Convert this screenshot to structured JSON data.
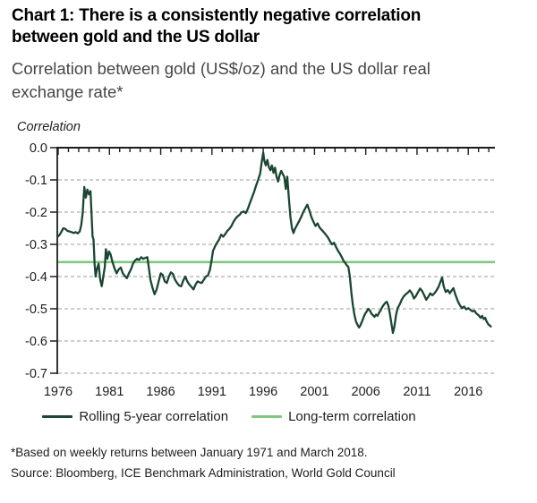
{
  "header": {
    "title_line1": "Chart 1: There is a consistently negative correlation",
    "title_line2": "between gold and the US dollar",
    "subtitle_line1": "Correlation between gold (US$/oz) and the US dollar real",
    "subtitle_line2": "exchange rate*"
  },
  "footer": {
    "footnote": "*Based on weekly returns between January 1971 and March 2018.",
    "source": "Source: Bloomberg, ICE Benchmark Administration, World Gold Council"
  },
  "colors": {
    "title": "#000000",
    "subtitle": "#464646",
    "axis": "#1d1d1b",
    "grid": "#9b9b9b",
    "text": "#1d1d1b",
    "series_dark": "#1a4632",
    "series_light": "#7fc882"
  },
  "chart_data": {
    "type": "line",
    "title": "Chart 1: There is a consistently negative correlation between gold and the US dollar",
    "subtitle": "Correlation between gold (US$/oz) and the US dollar real exchange rate*",
    "ylabel": "Correlation",
    "xlabel": "",
    "grid": "horizontal-dashed",
    "legend_position": "bottom",
    "x_range": [
      1976,
      2018.6
    ],
    "y_range": [
      0,
      -0.7
    ],
    "x_ticks": [
      1976,
      1981,
      1986,
      1991,
      1996,
      2001,
      2006,
      2011,
      2016
    ],
    "y_ticks": [
      0,
      -0.1,
      -0.2,
      -0.3,
      -0.4,
      -0.5,
      -0.6,
      -0.7
    ],
    "y_tick_labels": [
      "0.0",
      "-0.1",
      "-0.2",
      "-0.3",
      "-0.4",
      "-0.5",
      "-0.6",
      "-0.7"
    ],
    "series": [
      {
        "name": "Rolling 5-year correlation",
        "color": "#1a4632",
        "points": [
          [
            1976.0,
            -0.275
          ],
          [
            1976.15,
            -0.27
          ],
          [
            1976.3,
            -0.262
          ],
          [
            1976.5,
            -0.25
          ],
          [
            1976.7,
            -0.252
          ],
          [
            1976.9,
            -0.258
          ],
          [
            1977.1,
            -0.26
          ],
          [
            1977.3,
            -0.262
          ],
          [
            1977.5,
            -0.265
          ],
          [
            1977.7,
            -0.262
          ],
          [
            1977.9,
            -0.266
          ],
          [
            1978.1,
            -0.26
          ],
          [
            1978.25,
            -0.24
          ],
          [
            1978.4,
            -0.2
          ],
          [
            1978.45,
            -0.17
          ],
          [
            1978.55,
            -0.122
          ],
          [
            1978.7,
            -0.155
          ],
          [
            1978.85,
            -0.13
          ],
          [
            1979.0,
            -0.145
          ],
          [
            1979.15,
            -0.135
          ],
          [
            1979.25,
            -0.2
          ],
          [
            1979.35,
            -0.275
          ],
          [
            1979.45,
            -0.285
          ],
          [
            1979.55,
            -0.36
          ],
          [
            1979.65,
            -0.4
          ],
          [
            1979.8,
            -0.375
          ],
          [
            1979.95,
            -0.36
          ],
          [
            1980.1,
            -0.41
          ],
          [
            1980.25,
            -0.43
          ],
          [
            1980.4,
            -0.4
          ],
          [
            1980.55,
            -0.37
          ],
          [
            1980.65,
            -0.315
          ],
          [
            1980.8,
            -0.345
          ],
          [
            1980.95,
            -0.322
          ],
          [
            1981.1,
            -0.33
          ],
          [
            1981.3,
            -0.355
          ],
          [
            1981.5,
            -0.375
          ],
          [
            1981.7,
            -0.39
          ],
          [
            1981.9,
            -0.378
          ],
          [
            1982.1,
            -0.372
          ],
          [
            1982.3,
            -0.39
          ],
          [
            1982.5,
            -0.398
          ],
          [
            1982.7,
            -0.405
          ],
          [
            1982.9,
            -0.39
          ],
          [
            1983.1,
            -0.378
          ],
          [
            1983.3,
            -0.36
          ],
          [
            1983.5,
            -0.35
          ],
          [
            1983.7,
            -0.345
          ],
          [
            1983.9,
            -0.348
          ],
          [
            1984.1,
            -0.34
          ],
          [
            1984.3,
            -0.345
          ],
          [
            1984.5,
            -0.342
          ],
          [
            1984.7,
            -0.34
          ],
          [
            1984.85,
            -0.375
          ],
          [
            1985.0,
            -0.41
          ],
          [
            1985.2,
            -0.435
          ],
          [
            1985.4,
            -0.455
          ],
          [
            1985.6,
            -0.44
          ],
          [
            1985.8,
            -0.415
          ],
          [
            1986.0,
            -0.39
          ],
          [
            1986.2,
            -0.395
          ],
          [
            1986.4,
            -0.415
          ],
          [
            1986.6,
            -0.42
          ],
          [
            1986.8,
            -0.4
          ],
          [
            1987.0,
            -0.387
          ],
          [
            1987.2,
            -0.392
          ],
          [
            1987.4,
            -0.41
          ],
          [
            1987.6,
            -0.42
          ],
          [
            1987.8,
            -0.428
          ],
          [
            1988.0,
            -0.43
          ],
          [
            1988.2,
            -0.412
          ],
          [
            1988.4,
            -0.4
          ],
          [
            1988.6,
            -0.415
          ],
          [
            1988.8,
            -0.425
          ],
          [
            1989.0,
            -0.432
          ],
          [
            1989.2,
            -0.44
          ],
          [
            1989.4,
            -0.425
          ],
          [
            1989.6,
            -0.415
          ],
          [
            1989.8,
            -0.418
          ],
          [
            1990.0,
            -0.42
          ],
          [
            1990.2,
            -0.41
          ],
          [
            1990.4,
            -0.4
          ],
          [
            1990.6,
            -0.397
          ],
          [
            1990.8,
            -0.38
          ],
          [
            1990.95,
            -0.352
          ],
          [
            1991.1,
            -0.32
          ],
          [
            1991.4,
            -0.3
          ],
          [
            1991.7,
            -0.285
          ],
          [
            1991.9,
            -0.27
          ],
          [
            1992.1,
            -0.276
          ],
          [
            1992.3,
            -0.268
          ],
          [
            1992.5,
            -0.258
          ],
          [
            1992.7,
            -0.252
          ],
          [
            1992.9,
            -0.243
          ],
          [
            1993.1,
            -0.23
          ],
          [
            1993.3,
            -0.22
          ],
          [
            1993.5,
            -0.213
          ],
          [
            1993.7,
            -0.208
          ],
          [
            1993.9,
            -0.2
          ],
          [
            1994.1,
            -0.198
          ],
          [
            1994.3,
            -0.203
          ],
          [
            1994.5,
            -0.19
          ],
          [
            1994.7,
            -0.172
          ],
          [
            1994.9,
            -0.155
          ],
          [
            1995.1,
            -0.138
          ],
          [
            1995.3,
            -0.118
          ],
          [
            1995.5,
            -0.1
          ],
          [
            1995.7,
            -0.08
          ],
          [
            1995.85,
            -0.045
          ],
          [
            1996.0,
            -0.015
          ],
          [
            1996.1,
            -0.04
          ],
          [
            1996.25,
            -0.055
          ],
          [
            1996.4,
            -0.038
          ],
          [
            1996.55,
            -0.06
          ],
          [
            1996.7,
            -0.07
          ],
          [
            1996.85,
            -0.055
          ],
          [
            1997.0,
            -0.078
          ],
          [
            1997.15,
            -0.062
          ],
          [
            1997.3,
            -0.09
          ],
          [
            1997.45,
            -0.105
          ],
          [
            1997.6,
            -0.085
          ],
          [
            1997.75,
            -0.072
          ],
          [
            1997.9,
            -0.082
          ],
          [
            1998.05,
            -0.09
          ],
          [
            1998.2,
            -0.128
          ],
          [
            1998.35,
            -0.09
          ],
          [
            1998.5,
            -0.155
          ],
          [
            1998.65,
            -0.215
          ],
          [
            1998.8,
            -0.25
          ],
          [
            1998.95,
            -0.265
          ],
          [
            1999.1,
            -0.252
          ],
          [
            1999.3,
            -0.24
          ],
          [
            1999.5,
            -0.228
          ],
          [
            1999.7,
            -0.215
          ],
          [
            1999.9,
            -0.2
          ],
          [
            2000.1,
            -0.188
          ],
          [
            2000.3,
            -0.177
          ],
          [
            2000.5,
            -0.195
          ],
          [
            2000.7,
            -0.215
          ],
          [
            2000.9,
            -0.23
          ],
          [
            2001.1,
            -0.243
          ],
          [
            2001.3,
            -0.235
          ],
          [
            2001.5,
            -0.248
          ],
          [
            2001.7,
            -0.255
          ],
          [
            2001.9,
            -0.262
          ],
          [
            2002.1,
            -0.27
          ],
          [
            2002.3,
            -0.278
          ],
          [
            2002.5,
            -0.29
          ],
          [
            2002.7,
            -0.3
          ],
          [
            2002.9,
            -0.295
          ],
          [
            2003.1,
            -0.308
          ],
          [
            2003.3,
            -0.32
          ],
          [
            2003.5,
            -0.33
          ],
          [
            2003.7,
            -0.342
          ],
          [
            2003.85,
            -0.352
          ],
          [
            2004.0,
            -0.358
          ],
          [
            2004.15,
            -0.365
          ],
          [
            2004.3,
            -0.37
          ],
          [
            2004.45,
            -0.4
          ],
          [
            2004.6,
            -0.45
          ],
          [
            2004.75,
            -0.49
          ],
          [
            2004.9,
            -0.52
          ],
          [
            2005.05,
            -0.54
          ],
          [
            2005.2,
            -0.55
          ],
          [
            2005.35,
            -0.558
          ],
          [
            2005.5,
            -0.55
          ],
          [
            2005.65,
            -0.538
          ],
          [
            2005.8,
            -0.525
          ],
          [
            2005.95,
            -0.515
          ],
          [
            2006.1,
            -0.508
          ],
          [
            2006.25,
            -0.5
          ],
          [
            2006.4,
            -0.505
          ],
          [
            2006.55,
            -0.515
          ],
          [
            2006.7,
            -0.52
          ],
          [
            2006.85,
            -0.525
          ],
          [
            2007.0,
            -0.518
          ],
          [
            2007.15,
            -0.522
          ],
          [
            2007.3,
            -0.512
          ],
          [
            2007.45,
            -0.505
          ],
          [
            2007.6,
            -0.495
          ],
          [
            2007.75,
            -0.488
          ],
          [
            2007.9,
            -0.482
          ],
          [
            2008.05,
            -0.478
          ],
          [
            2008.2,
            -0.49
          ],
          [
            2008.35,
            -0.515
          ],
          [
            2008.5,
            -0.545
          ],
          [
            2008.65,
            -0.575
          ],
          [
            2008.8,
            -0.555
          ],
          [
            2008.95,
            -0.52
          ],
          [
            2009.1,
            -0.498
          ],
          [
            2009.3,
            -0.487
          ],
          [
            2009.5,
            -0.472
          ],
          [
            2009.7,
            -0.462
          ],
          [
            2009.9,
            -0.455
          ],
          [
            2010.1,
            -0.45
          ],
          [
            2010.3,
            -0.443
          ],
          [
            2010.5,
            -0.452
          ],
          [
            2010.7,
            -0.468
          ],
          [
            2010.9,
            -0.46
          ],
          [
            2011.1,
            -0.448
          ],
          [
            2011.3,
            -0.437
          ],
          [
            2011.5,
            -0.445
          ],
          [
            2011.7,
            -0.458
          ],
          [
            2011.9,
            -0.472
          ],
          [
            2012.1,
            -0.463
          ],
          [
            2012.3,
            -0.452
          ],
          [
            2012.5,
            -0.458
          ],
          [
            2012.7,
            -0.452
          ],
          [
            2012.9,
            -0.443
          ],
          [
            2013.1,
            -0.432
          ],
          [
            2013.3,
            -0.415
          ],
          [
            2013.45,
            -0.403
          ],
          [
            2013.6,
            -0.43
          ],
          [
            2013.8,
            -0.448
          ],
          [
            2014.0,
            -0.442
          ],
          [
            2014.2,
            -0.452
          ],
          [
            2014.4,
            -0.442
          ],
          [
            2014.55,
            -0.436
          ],
          [
            2014.7,
            -0.452
          ],
          [
            2014.85,
            -0.465
          ],
          [
            2015.0,
            -0.478
          ],
          [
            2015.2,
            -0.49
          ],
          [
            2015.4,
            -0.498
          ],
          [
            2015.6,
            -0.493
          ],
          [
            2015.8,
            -0.502
          ],
          [
            2016.0,
            -0.498
          ],
          [
            2016.2,
            -0.503
          ],
          [
            2016.4,
            -0.508
          ],
          [
            2016.6,
            -0.506
          ],
          [
            2016.8,
            -0.515
          ],
          [
            2017.0,
            -0.52
          ],
          [
            2017.2,
            -0.528
          ],
          [
            2017.35,
            -0.522
          ],
          [
            2017.5,
            -0.532
          ],
          [
            2017.65,
            -0.528
          ],
          [
            2017.8,
            -0.54
          ],
          [
            2017.95,
            -0.548
          ],
          [
            2018.1,
            -0.552
          ],
          [
            2018.2,
            -0.555
          ]
        ]
      },
      {
        "name": "Long-term correlation",
        "color": "#7fc882",
        "value": -0.355
      }
    ]
  }
}
